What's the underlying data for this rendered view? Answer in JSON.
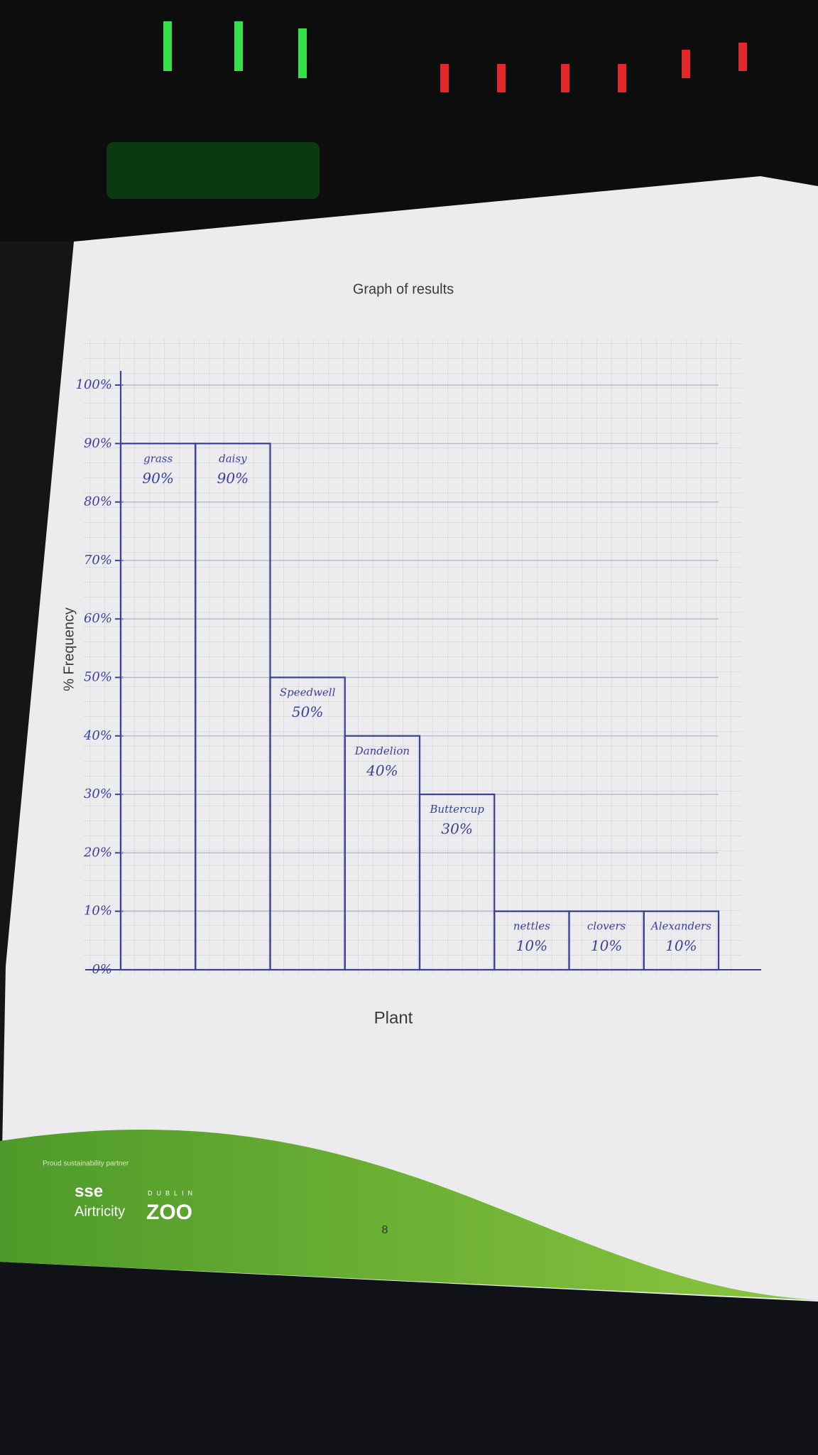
{
  "chart_data": {
    "type": "bar",
    "title": "Graph of results",
    "x_label": "Plant",
    "y_label": "% Frequency",
    "categories": [
      "grass",
      "daisy",
      "Speedwell",
      "Dandelion",
      "Buttercup",
      "nettles",
      "clovers",
      "Alexanders"
    ],
    "values": [
      90,
      90,
      50,
      40,
      30,
      10,
      10,
      10
    ],
    "value_labels": [
      "90%",
      "90%",
      "50%",
      "40%",
      "30%",
      "10%",
      "10%",
      "10%"
    ],
    "color": "#3b3f9a",
    "ylim": [
      0,
      100
    ],
    "yticks": [
      {
        "value": 0,
        "label": "0%"
      },
      {
        "value": 10,
        "label": "10%"
      },
      {
        "value": 20,
        "label": "20%"
      },
      {
        "value": 30,
        "label": "30%"
      },
      {
        "value": 40,
        "label": "40%"
      },
      {
        "value": 50,
        "label": "50%"
      },
      {
        "value": 60,
        "label": "60%"
      },
      {
        "value": 70,
        "label": "70%"
      },
      {
        "value": 80,
        "label": "80%"
      },
      {
        "value": 90,
        "label": "90%"
      },
      {
        "value": 100,
        "label": "100%"
      }
    ],
    "grid": true
  },
  "footer": {
    "partner": "Proud sustainability partner",
    "brand": "sse",
    "brand_sub": "Airtricity",
    "zoo_city": "DUBLIN",
    "zoo": "ZOO",
    "page_number": "8"
  }
}
